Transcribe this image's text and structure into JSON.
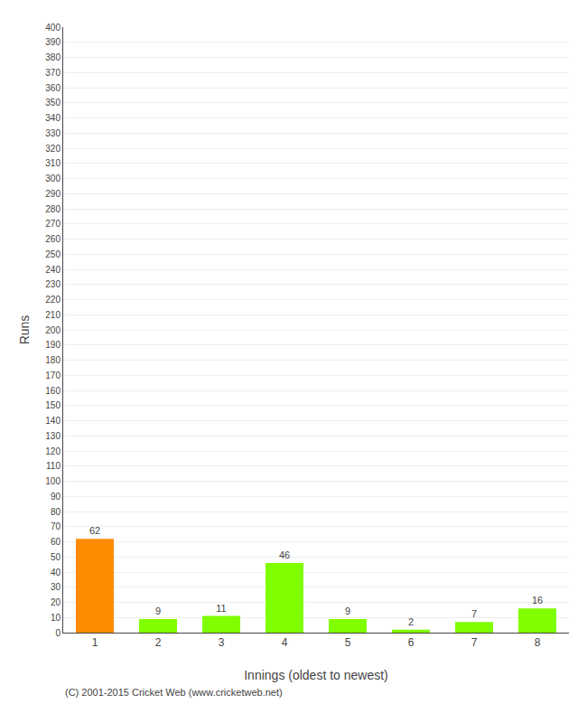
{
  "chart_data": {
    "type": "bar",
    "xlabel": "Innings (oldest to newest)",
    "ylabel": "Runs",
    "categories": [
      1,
      2,
      3,
      4,
      5,
      6,
      7,
      8
    ],
    "values": [
      62,
      9,
      11,
      46,
      9,
      2,
      7,
      16
    ],
    "colors": [
      "#ff8c00",
      "#7fff00",
      "#7fff00",
      "#7fff00",
      "#7fff00",
      "#7fff00",
      "#7fff00",
      "#7fff00"
    ],
    "ylim": [
      0,
      400
    ],
    "yticks": [
      0,
      10,
      20,
      30,
      40,
      50,
      60,
      70,
      80,
      90,
      100,
      110,
      120,
      130,
      140,
      150,
      160,
      170,
      180,
      190,
      200,
      210,
      220,
      230,
      240,
      250,
      260,
      270,
      280,
      290,
      300,
      310,
      320,
      330,
      340,
      350,
      360,
      370,
      380,
      390,
      400
    ],
    "grid": true,
    "data_labels": true,
    "annotations": [
      "(C) 2001-2015 Cricket Web (www.cricketweb.net)"
    ]
  }
}
